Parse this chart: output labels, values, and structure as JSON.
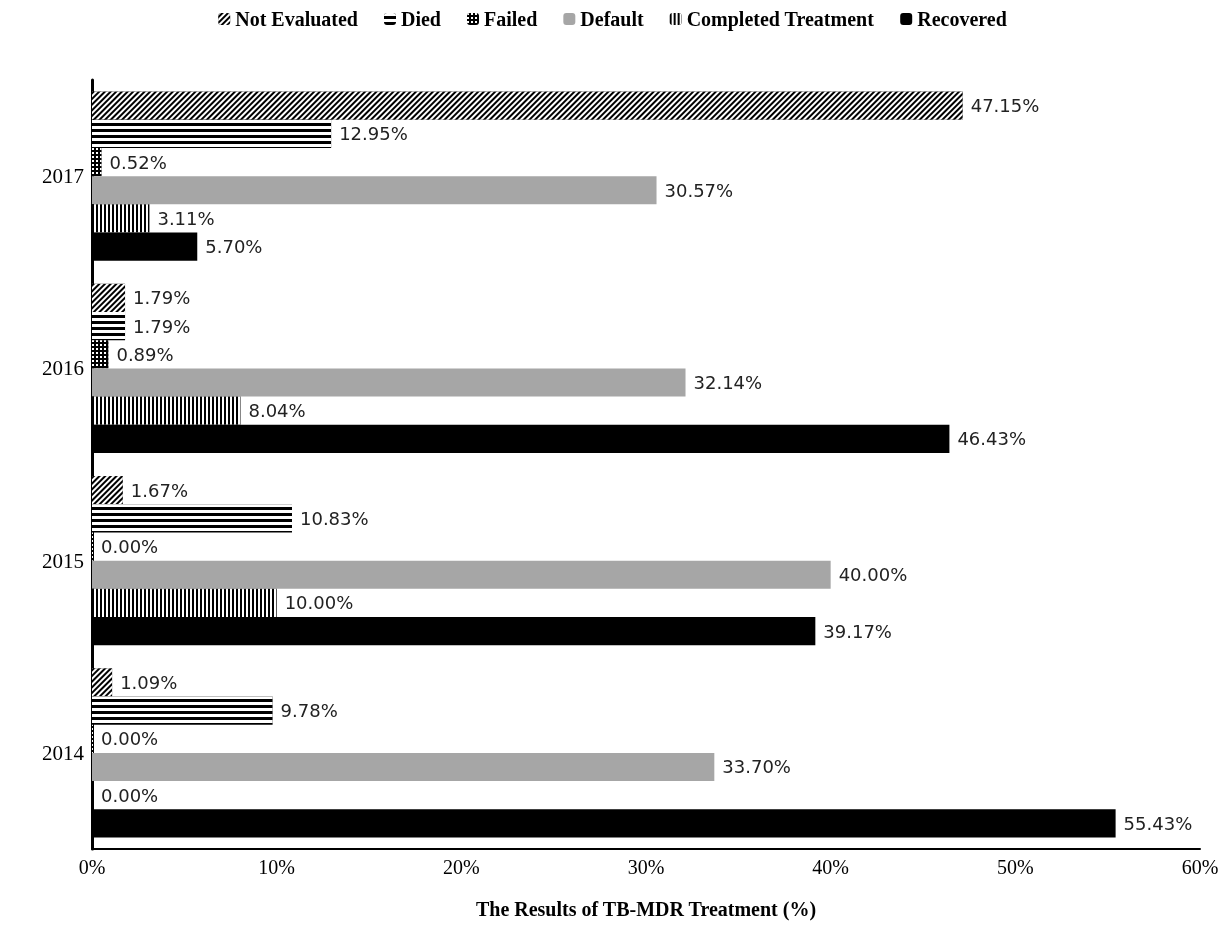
{
  "chart_data": {
    "type": "bar",
    "orientation": "horizontal",
    "xlabel": "The Results of TB-MDR Treatment (%)",
    "categories": [
      "2017",
      "2016",
      "2015",
      "2014"
    ],
    "xlim": [
      0,
      60
    ],
    "xticks": [
      {
        "value": 0,
        "label": "0%"
      },
      {
        "value": 10,
        "label": "10%"
      },
      {
        "value": 20,
        "label": "20%"
      },
      {
        "value": 30,
        "label": "30%"
      },
      {
        "value": 40,
        "label": "40%"
      },
      {
        "value": 50,
        "label": "50%"
      },
      {
        "value": 60,
        "label": "60%"
      }
    ],
    "grid": false,
    "legend": "top",
    "series": [
      {
        "name": "Not Evaluated",
        "color": "#000000",
        "values": [
          47.15,
          1.79,
          1.67,
          1.09
        ],
        "value_labels": [
          "47.15%",
          "1.79%",
          "1.67%",
          "1.09%"
        ]
      },
      {
        "name": "Died",
        "color": "#000000",
        "values": [
          12.95,
          1.79,
          10.83,
          9.78
        ],
        "value_labels": [
          "12.95%",
          "1.79%",
          "10.83%",
          "9.78%"
        ]
      },
      {
        "name": "Failed",
        "color": "#000000",
        "values": [
          0.52,
          0.89,
          0,
          0
        ],
        "value_labels": [
          "0.52%",
          "0.89%",
          "0.00%",
          "0.00%"
        ]
      },
      {
        "name": "Default",
        "color": "#a6a6a6",
        "values": [
          30.57,
          32.14,
          40.0,
          33.7
        ],
        "value_labels": [
          "30.57%",
          "32.14%",
          "40.00%",
          "33.70%"
        ]
      },
      {
        "name": "Completed Treatment",
        "color": "#000000",
        "values": [
          3.11,
          8.04,
          10.0,
          0
        ],
        "value_labels": [
          "3.11%",
          "8.04%",
          "10.00%",
          "0.00%"
        ]
      },
      {
        "name": "Recovered",
        "color": "#000000",
        "values": [
          5.7,
          46.43,
          39.17,
          55.43
        ],
        "value_labels": [
          "5.70%",
          "46.43%",
          "39.17%",
          "55.43%"
        ]
      }
    ]
  }
}
